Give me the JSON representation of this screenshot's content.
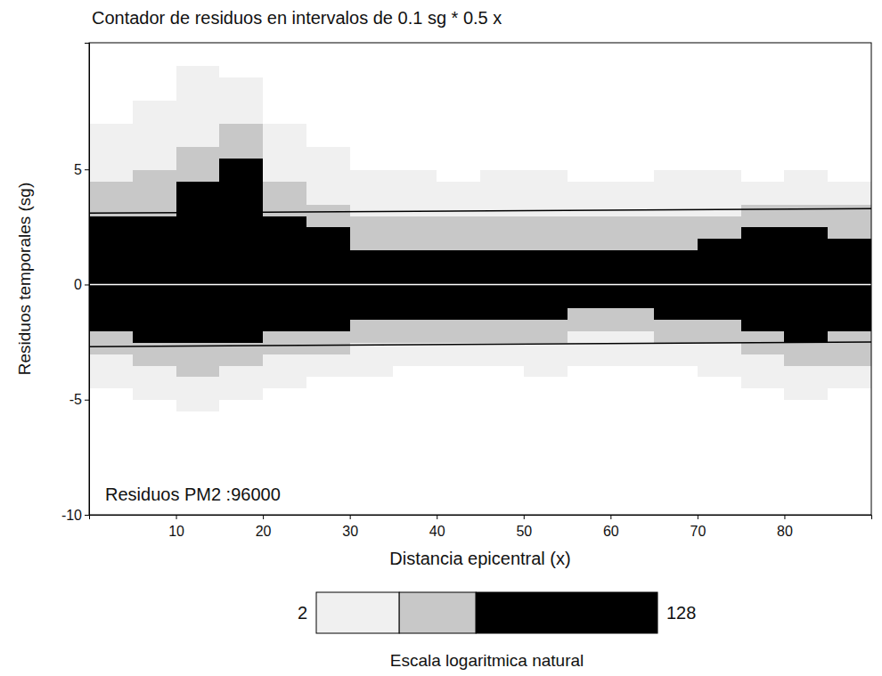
{
  "chart_data": {
    "type": "heatmap",
    "title": "Contador de residuos en intervalos de 0.1 sg * 0.5 x",
    "x_label": "Distancia epicentral (x)",
    "y_label": "Residuos temporales (sg)",
    "annotation": "Residuos PM2 :96000",
    "xlim": [
      0,
      90
    ],
    "ylim": [
      -10,
      10.5
    ],
    "xticks": [
      10,
      20,
      30,
      40,
      50,
      60,
      70,
      80
    ],
    "yticks": [
      -10,
      -5,
      0,
      5
    ],
    "x_bins": [
      0,
      5,
      10,
      15,
      20,
      25,
      30,
      35,
      40,
      45,
      50,
      55,
      60,
      65,
      70,
      75,
      80,
      85,
      90
    ],
    "y_bins": [
      -7,
      -6.5,
      -6,
      -5.5,
      -5,
      -4.5,
      -4,
      -3.5,
      -3,
      -2.5,
      -2,
      -1.5,
      -1,
      -0.5,
      0,
      0.5,
      1,
      1.5,
      2,
      2.5,
      3,
      3.5,
      4,
      4.5,
      5,
      5.5,
      6,
      6.5,
      7,
      7.5,
      8,
      8.5,
      9,
      9.5,
      10
    ],
    "cells": [
      [
        0,
        0,
        0,
        0,
        0,
        3,
        3,
        3,
        9,
        9,
        30,
        30,
        70,
        120,
        120,
        70,
        30,
        30,
        30,
        30,
        9,
        9,
        9,
        3,
        3,
        3,
        3,
        3,
        0,
        1,
        0,
        1,
        0,
        0
      ],
      [
        0,
        0,
        0,
        0,
        3,
        3,
        3,
        9,
        9,
        30,
        30,
        30,
        70,
        120,
        120,
        70,
        30,
        30,
        30,
        30,
        9,
        9,
        9,
        9,
        3,
        3,
        3,
        3,
        3,
        3,
        1,
        0,
        0,
        0
      ],
      [
        0,
        0,
        1,
        3,
        3,
        3,
        9,
        9,
        9,
        30,
        30,
        30,
        70,
        120,
        120,
        70,
        30,
        30,
        30,
        30,
        30,
        30,
        30,
        9,
        9,
        9,
        3,
        3,
        3,
        3,
        3,
        3,
        3,
        1
      ],
      [
        0,
        0,
        1,
        0,
        3,
        3,
        3,
        9,
        9,
        30,
        30,
        30,
        70,
        120,
        120,
        70,
        30,
        30,
        30,
        30,
        30,
        30,
        30,
        30,
        30,
        9,
        9,
        9,
        3,
        3,
        3,
        3,
        1,
        0
      ],
      [
        0,
        0,
        0,
        1,
        0,
        3,
        3,
        3,
        9,
        9,
        30,
        30,
        70,
        120,
        120,
        70,
        30,
        30,
        30,
        30,
        9,
        9,
        9,
        3,
        3,
        3,
        3,
        3,
        0,
        0,
        0,
        0,
        0,
        0
      ],
      [
        0,
        0,
        0,
        0,
        0,
        0,
        3,
        3,
        9,
        9,
        30,
        30,
        70,
        120,
        120,
        70,
        30,
        30,
        30,
        9,
        9,
        3,
        3,
        3,
        3,
        3,
        0,
        0,
        0,
        0,
        0,
        0,
        0,
        0
      ],
      [
        0,
        0,
        0,
        0,
        0,
        0,
        3,
        3,
        3,
        9,
        9,
        30,
        70,
        120,
        120,
        70,
        30,
        9,
        9,
        9,
        3,
        3,
        3,
        3,
        0,
        0,
        0,
        0,
        0,
        0,
        0,
        0,
        0,
        0
      ],
      [
        0,
        0,
        0,
        0,
        0,
        0,
        0,
        3,
        3,
        9,
        9,
        30,
        70,
        120,
        120,
        70,
        30,
        9,
        9,
        9,
        3,
        3,
        3,
        3,
        0,
        1,
        0,
        0,
        0,
        0,
        0,
        0,
        0,
        0
      ],
      [
        0,
        0,
        0,
        0,
        0,
        0,
        0,
        3,
        3,
        9,
        9,
        30,
        70,
        120,
        120,
        70,
        30,
        9,
        9,
        9,
        3,
        3,
        3,
        0,
        0,
        0,
        0,
        0,
        0,
        0,
        0,
        0,
        0,
        0
      ],
      [
        0,
        0,
        0,
        0,
        0,
        0,
        0,
        3,
        3,
        9,
        9,
        30,
        70,
        120,
        120,
        70,
        30,
        9,
        9,
        9,
        3,
        3,
        3,
        3,
        0,
        0,
        0,
        0,
        0,
        0,
        0,
        0,
        0,
        0
      ],
      [
        0,
        0,
        1,
        0,
        0,
        0,
        3,
        3,
        3,
        9,
        9,
        30,
        70,
        120,
        120,
        70,
        30,
        9,
        9,
        9,
        3,
        3,
        3,
        3,
        0,
        0,
        0,
        0,
        0,
        0,
        0,
        0,
        0,
        0
      ],
      [
        0,
        0,
        0,
        0,
        0,
        0,
        0,
        3,
        3,
        3,
        9,
        9,
        70,
        120,
        120,
        70,
        30,
        9,
        9,
        9,
        3,
        3,
        3,
        0,
        0,
        0,
        0,
        0,
        0,
        0,
        0,
        0,
        0,
        0
      ],
      [
        0,
        0,
        0,
        0,
        0,
        0,
        0,
        3,
        3,
        3,
        9,
        9,
        70,
        120,
        120,
        70,
        30,
        9,
        9,
        9,
        3,
        3,
        3,
        0,
        0,
        0,
        0,
        0,
        0,
        0,
        0,
        0,
        0,
        0
      ],
      [
        0,
        0,
        0,
        0,
        0,
        0,
        0,
        3,
        3,
        9,
        9,
        30,
        70,
        120,
        120,
        70,
        30,
        9,
        9,
        9,
        3,
        3,
        3,
        3,
        0,
        0,
        0,
        0,
        0,
        0,
        0,
        0,
        0,
        0
      ],
      [
        0,
        0,
        0,
        0,
        0,
        0,
        3,
        3,
        3,
        9,
        9,
        30,
        70,
        120,
        120,
        70,
        30,
        30,
        9,
        9,
        3,
        3,
        3,
        3,
        0,
        0,
        0,
        0,
        0,
        0,
        0,
        0,
        0,
        0
      ],
      [
        0,
        0,
        0,
        0,
        0,
        3,
        3,
        3,
        9,
        9,
        30,
        30,
        70,
        120,
        120,
        70,
        30,
        30,
        30,
        9,
        9,
        3,
        3,
        0,
        0,
        0,
        0,
        0,
        0,
        0,
        0,
        0,
        0,
        0
      ],
      [
        0,
        0,
        0,
        1,
        3,
        3,
        3,
        9,
        9,
        30,
        30,
        30,
        70,
        120,
        120,
        70,
        30,
        30,
        30,
        9,
        9,
        3,
        3,
        3,
        0,
        0,
        0,
        0,
        0,
        0,
        0,
        0,
        0,
        0
      ],
      [
        0,
        0,
        0,
        0,
        0,
        3,
        3,
        9,
        9,
        9,
        30,
        30,
        70,
        120,
        120,
        70,
        30,
        30,
        9,
        9,
        9,
        3,
        3,
        0,
        0,
        0,
        0,
        0,
        0,
        0,
        0,
        0,
        0,
        0
      ]
    ],
    "lines": [
      {
        "x": [
          0,
          90
        ],
        "y": [
          3.1,
          3.3
        ],
        "color": "#000000"
      },
      {
        "x": [
          0,
          90
        ],
        "y": [
          -2.7,
          -2.5
        ],
        "color": "#000000"
      },
      {
        "x": [
          0,
          90
        ],
        "y": [
          0,
          0
        ],
        "color": "#ffffff"
      }
    ],
    "colorbar": {
      "range": [
        2,
        128
      ],
      "ticks": [
        2,
        128
      ],
      "levels": [
        2,
        5.5,
        14,
        128
      ],
      "colors": [
        "#f0f0f0",
        "#c8c8c8",
        "#000000"
      ],
      "log": true,
      "label": "Escala logaritmica natural"
    }
  }
}
